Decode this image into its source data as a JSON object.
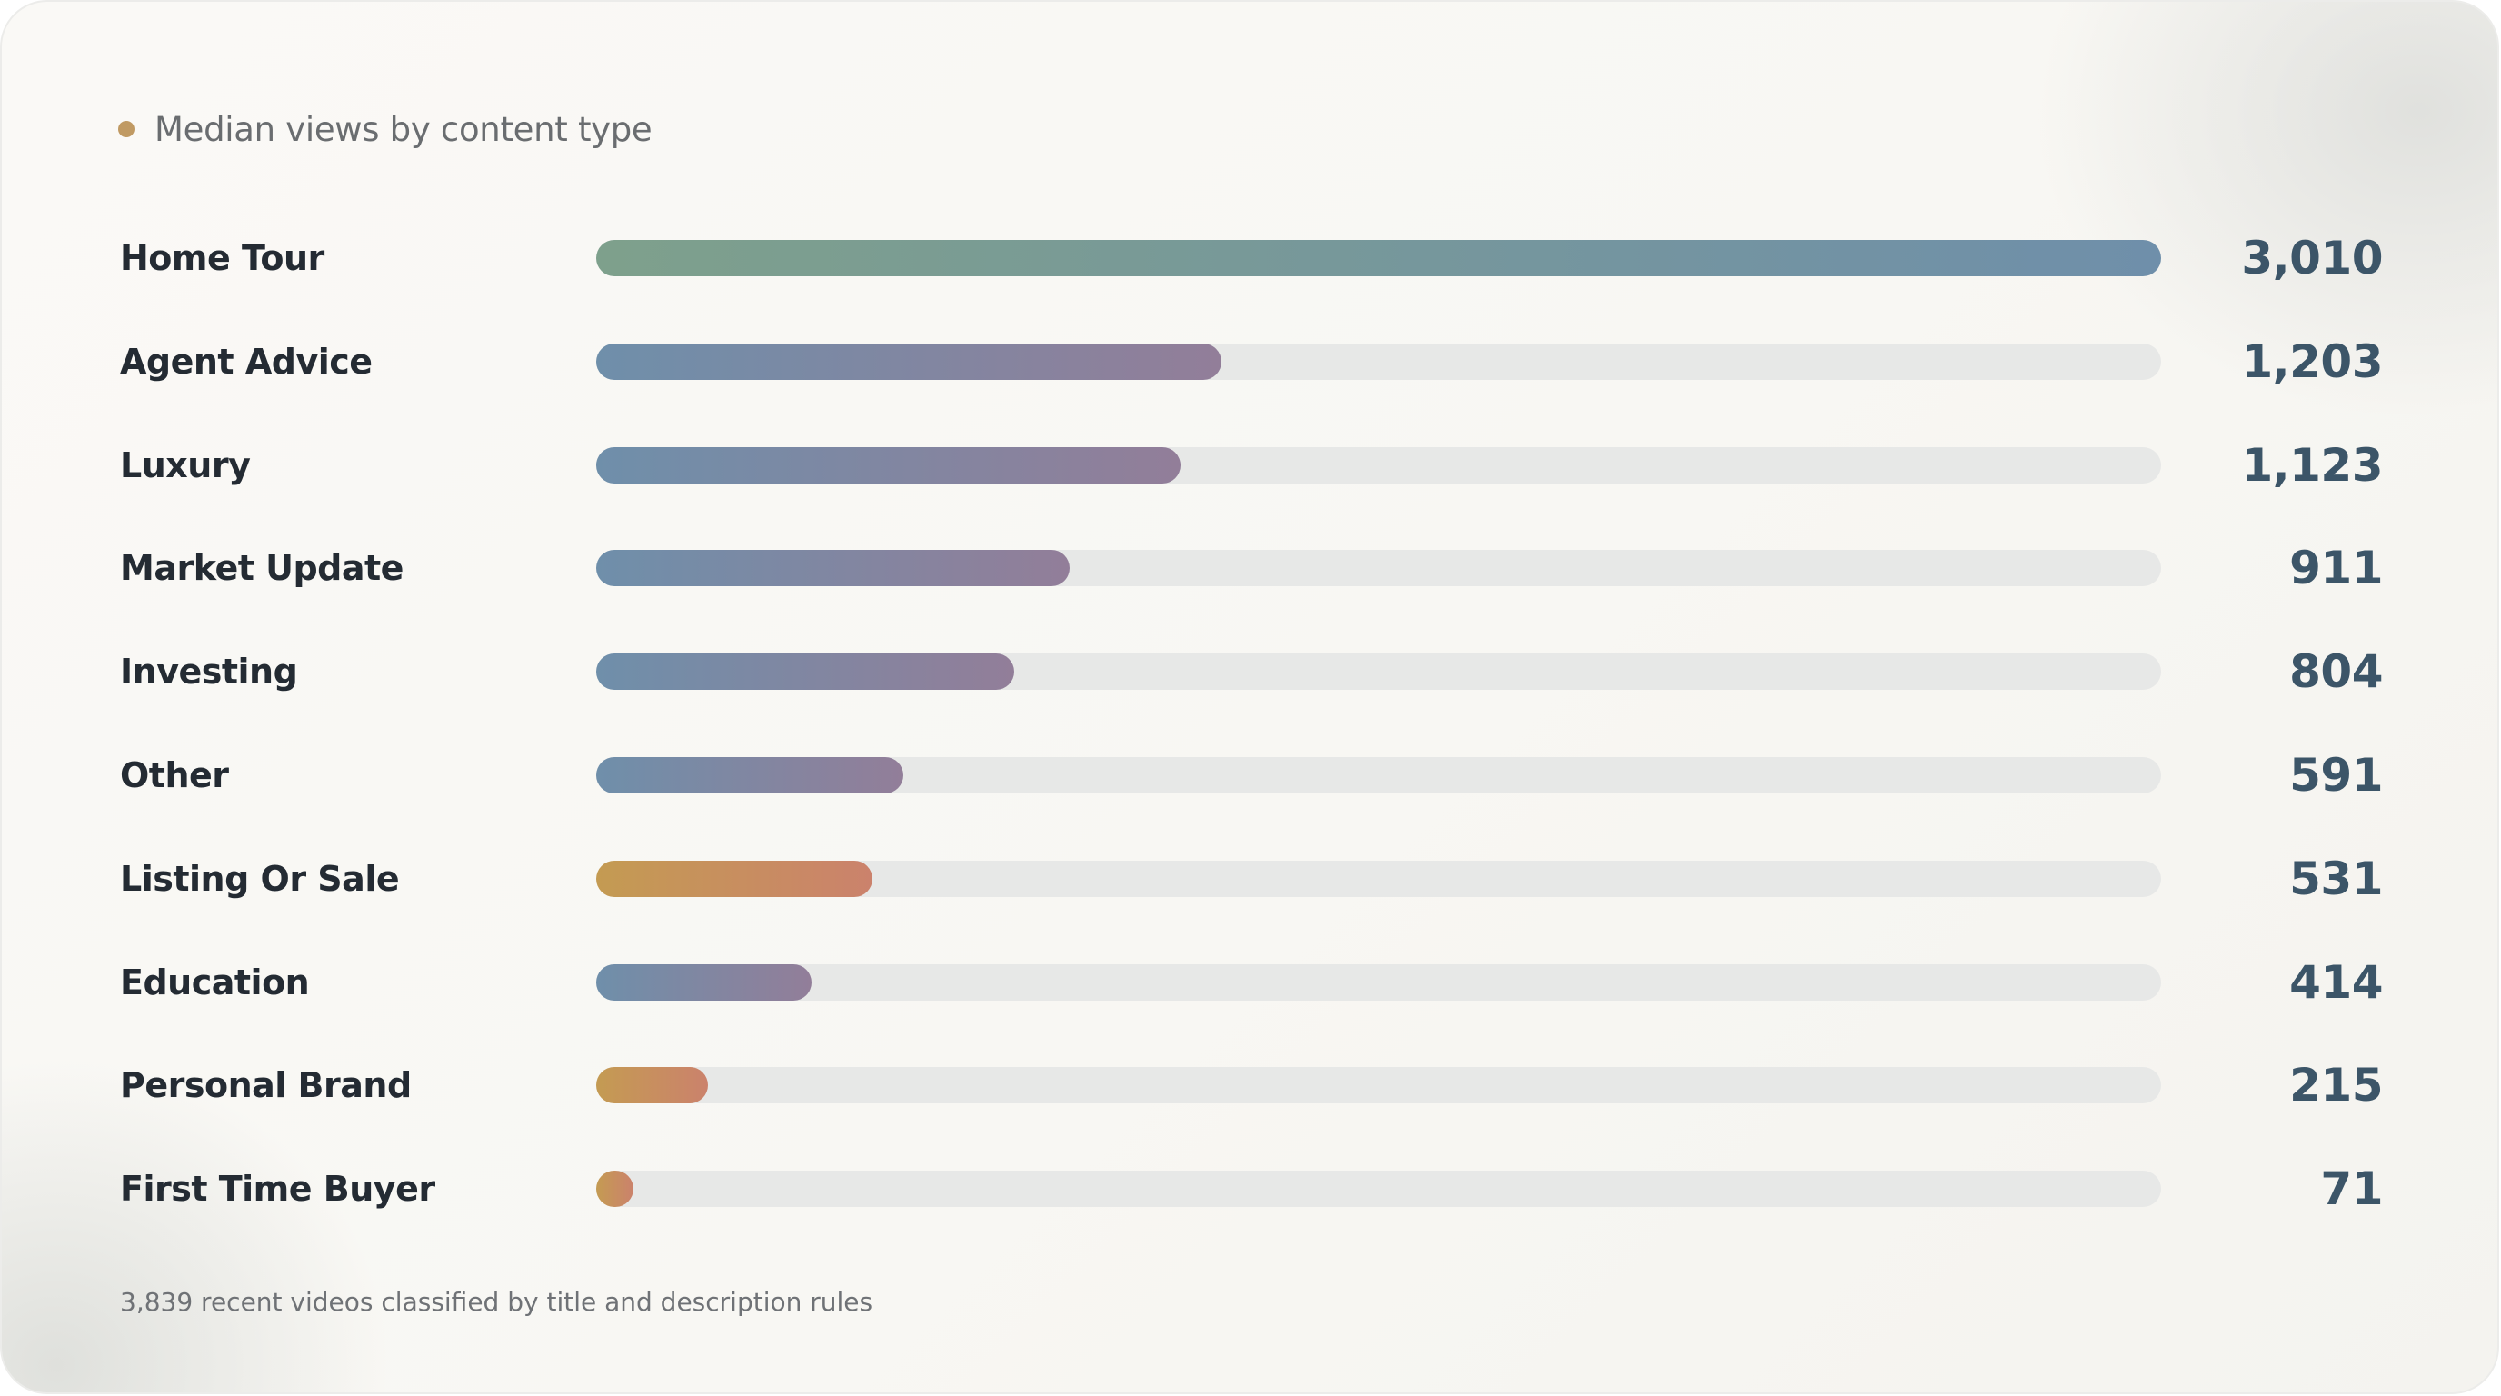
{
  "chart_data": {
    "type": "bar",
    "orientation": "horizontal",
    "title": "Median views by content type",
    "categories": [
      "Home Tour",
      "Agent Advice",
      "Luxury",
      "Market Update",
      "Investing",
      "Other",
      "Listing Or Sale",
      "Education",
      "Personal Brand",
      "First Time Buyer"
    ],
    "values": [
      3010,
      1203,
      1123,
      911,
      804,
      591,
      531,
      414,
      215,
      71
    ],
    "value_labels": [
      "3,010",
      "1,203",
      "1,123",
      "911",
      "804",
      "591",
      "531",
      "414",
      "215",
      "71"
    ],
    "xlim": [
      0,
      3010
    ],
    "grid": false,
    "legend": "none",
    "footnote": "3,839 recent videos classified by title and description rules"
  },
  "colors": {
    "title_dot": "#c09a63",
    "track": "#e7e8e7",
    "label_text": "#242b33",
    "value_text": "#3c5568",
    "gradient_green": "#7ea08c",
    "gradient_blue": "#6f8faa",
    "gradient_purple": "#927e99",
    "gradient_gold": "#c49b52",
    "gradient_coral": "#cb826c"
  },
  "bar_styles": [
    "green-blue",
    "blue-purple",
    "blue-purple",
    "blue-purple",
    "blue-purple",
    "blue-purple",
    "gold-coral",
    "blue-purple",
    "gold-coral",
    "gold-coral"
  ]
}
